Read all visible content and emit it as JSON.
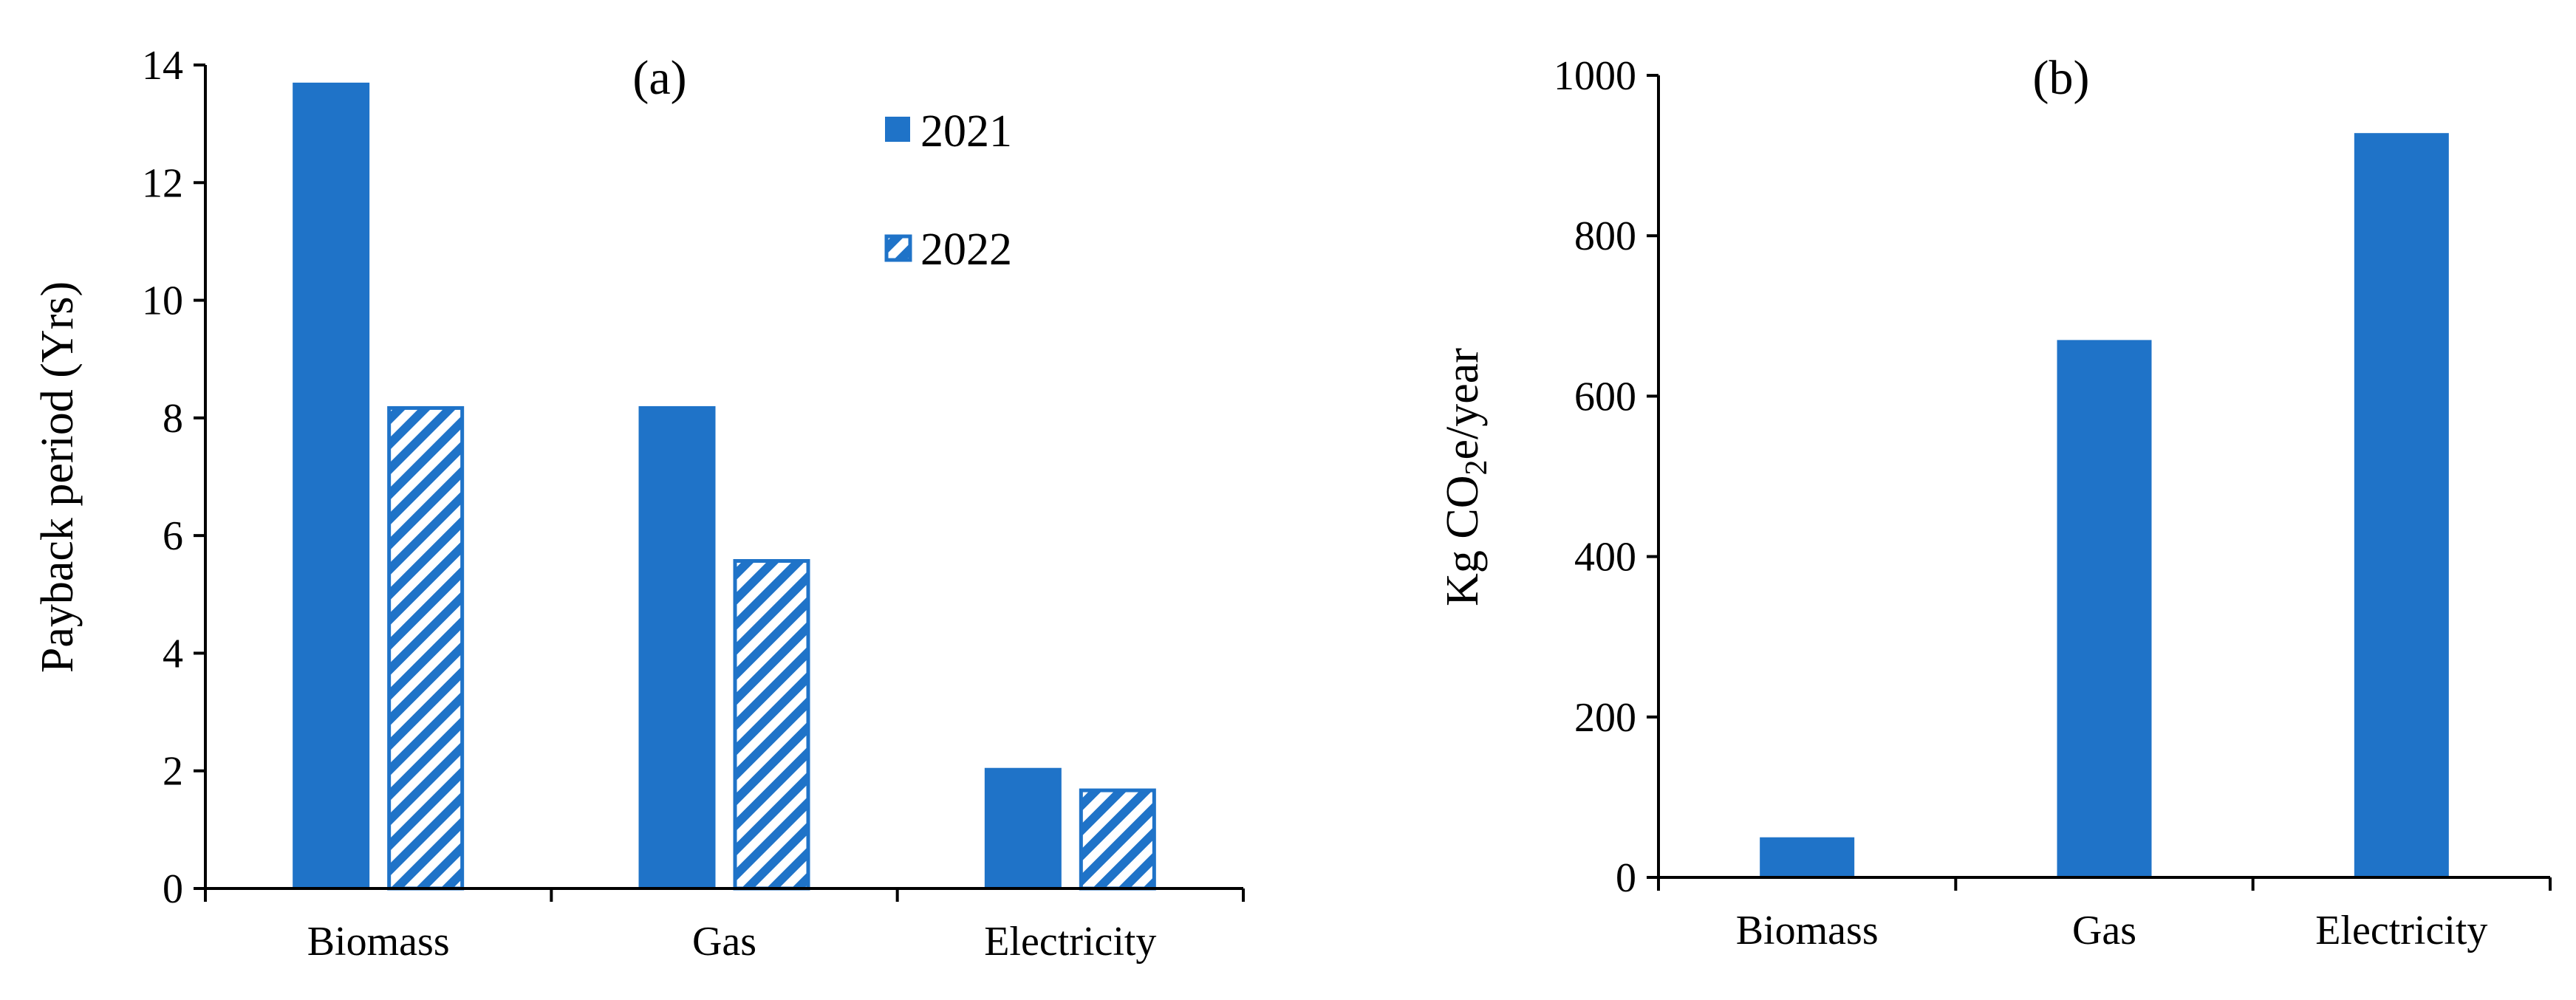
{
  "colors": {
    "bar": "#1f73c8",
    "axis": "#000000",
    "background": "#ffffff"
  },
  "chart_data": [
    {
      "type": "bar",
      "panel_label": "(a)",
      "ylabel": "Payback period (Yrs)",
      "xlabel": "",
      "ylim": [
        0,
        14
      ],
      "yticks": [
        "0",
        "2",
        "4",
        "6",
        "8",
        "10",
        "12",
        "14"
      ],
      "categories": [
        "Biomass",
        "Gas",
        "Electricity"
      ],
      "legend_position": "top-right",
      "series": [
        {
          "name": "2021",
          "pattern": "solid",
          "values": [
            13.7,
            8.2,
            2.05
          ]
        },
        {
          "name": "2022",
          "pattern": "hatched",
          "values": [
            8.2,
            5.6,
            1.7
          ]
        }
      ]
    },
    {
      "type": "bar",
      "panel_label": "(b)",
      "ylabel_main": "Kg CO",
      "ylabel_sub": "2",
      "ylabel_tail": "e/year",
      "xlabel": "",
      "ylim": [
        0,
        1000
      ],
      "yticks": [
        "0",
        "200",
        "400",
        "600",
        "800",
        "1000"
      ],
      "categories": [
        "Biomass",
        "Gas",
        "Electricity"
      ],
      "values": [
        50,
        670,
        928
      ]
    }
  ]
}
